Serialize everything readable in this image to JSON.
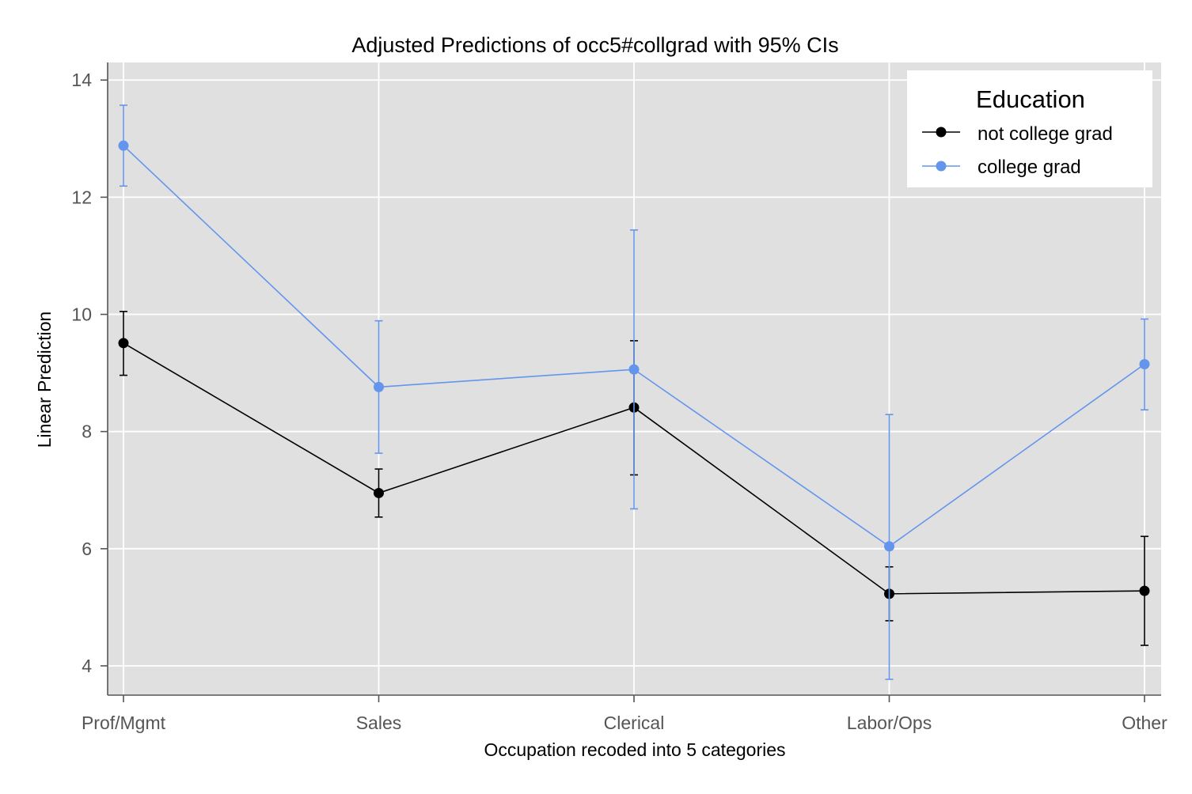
{
  "chart_data": {
    "type": "line",
    "title": "Adjusted Predictions of occ5#collgrad with 95% CIs",
    "xlabel": "Occupation recoded into 5 categories",
    "ylabel": "Linear Prediction",
    "categories": [
      "Prof/Mgmt",
      "Sales",
      "Clerical",
      "Labor/Ops",
      "Other"
    ],
    "yticks": [
      4,
      6,
      8,
      10,
      12,
      14
    ],
    "ylim": [
      3.5,
      14.3
    ],
    "grid": true,
    "legend": {
      "title": "Education",
      "placement": "top-right"
    },
    "series": [
      {
        "name": "not college grad",
        "color": "#000000",
        "values": [
          9.51,
          6.95,
          8.41,
          5.23,
          5.28
        ],
        "ci_low": [
          8.96,
          6.54,
          7.26,
          4.77,
          4.35
        ],
        "ci_high": [
          10.05,
          7.36,
          9.55,
          5.69,
          6.21
        ]
      },
      {
        "name": "college grad",
        "color": "#6495ED",
        "values": [
          12.88,
          8.76,
          9.06,
          6.04,
          9.15
        ],
        "ci_low": [
          12.19,
          7.63,
          6.68,
          3.77,
          8.37
        ],
        "ci_high": [
          13.57,
          9.89,
          11.44,
          8.29,
          9.92
        ]
      }
    ]
  },
  "colors": {
    "plot_background": "#e0e0e0",
    "grid": "#ffffff"
  }
}
